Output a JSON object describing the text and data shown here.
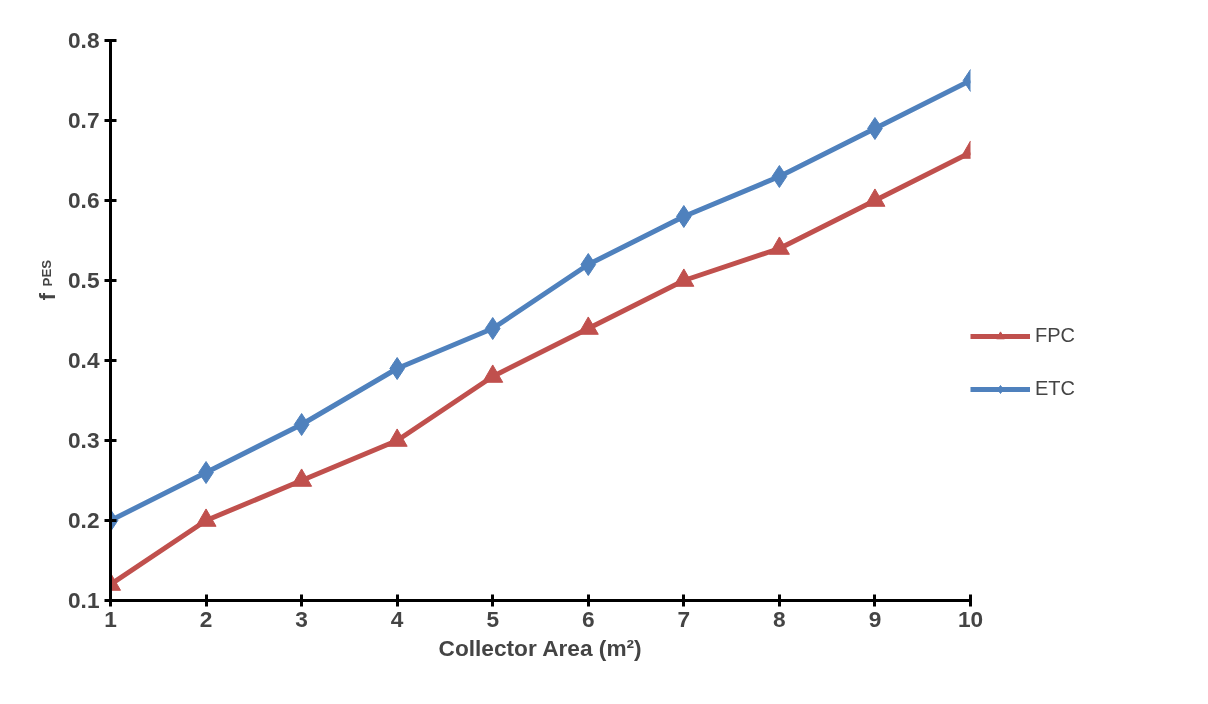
{
  "chart_data": {
    "type": "line",
    "xlabel": "Collector Area (m²)",
    "ylabel": "f$_{PES}$",
    "x": [
      1,
      2,
      3,
      4,
      5,
      6,
      7,
      8,
      9,
      10
    ],
    "xlim": [
      1,
      10
    ],
    "xticks": [
      1,
      2,
      3,
      4,
      5,
      6,
      7,
      8,
      9,
      10
    ],
    "ylim": [
      0.1,
      0.8
    ],
    "yticks": [
      0.1,
      0.2,
      0.3,
      0.4,
      0.5,
      0.6,
      0.7,
      0.8
    ],
    "legend": "right",
    "grid": false,
    "line_style": "solid",
    "series": [
      {
        "name": "FPC",
        "color": "#c0504d",
        "marker": "triangle",
        "values": [
          0.12,
          0.2,
          0.25,
          0.3,
          0.38,
          0.44,
          0.5,
          0.54,
          0.6,
          0.66
        ]
      },
      {
        "name": "ETC",
        "color": "#4f81bd",
        "marker": "diamond",
        "values": [
          0.2,
          0.26,
          0.32,
          0.39,
          0.44,
          0.52,
          0.58,
          0.63,
          0.69,
          0.75
        ]
      }
    ]
  }
}
